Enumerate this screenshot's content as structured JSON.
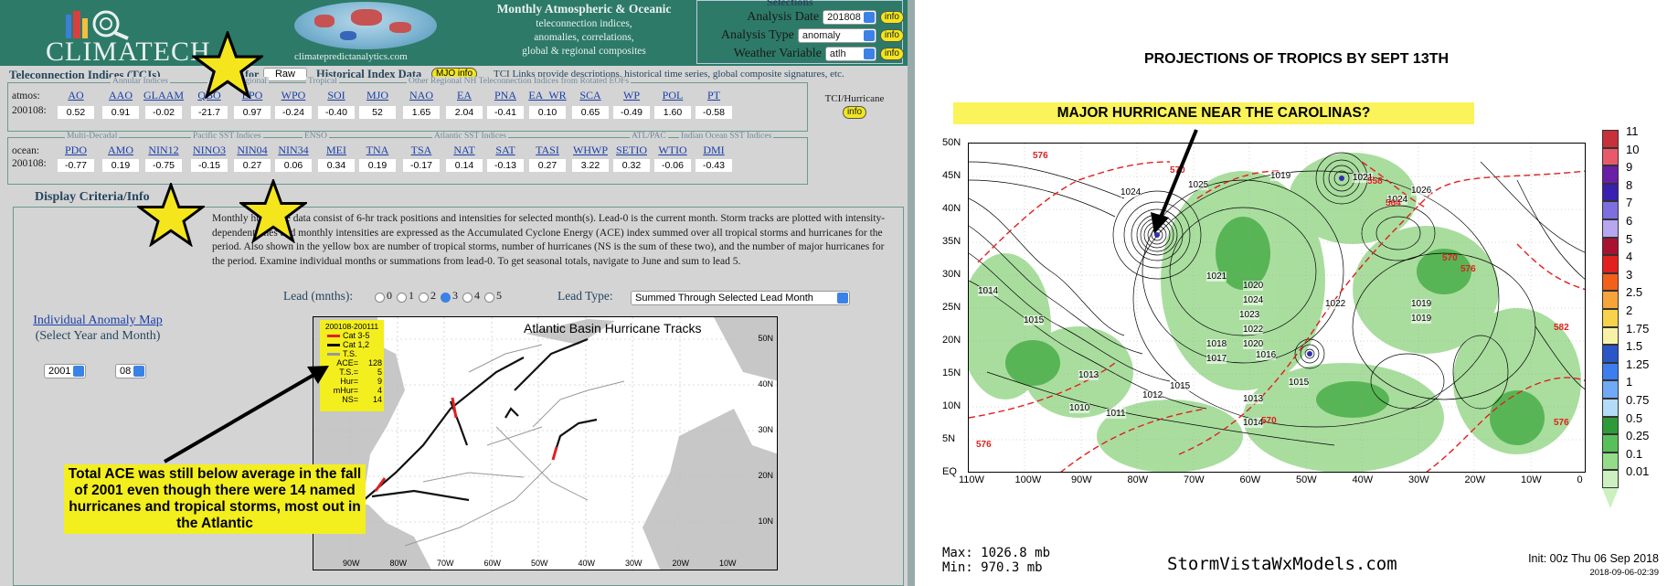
{
  "left": {
    "logo_text": "CLIMATECH",
    "site_url": "climatepredictanalytics.com",
    "header_desc": {
      "title": "Monthly Atmospheric & Oceanic",
      "line1": "teleconnection indices,",
      "line2": "anomalies, correlations,",
      "line3": "global & regional composites"
    },
    "selections": {
      "caption": "Selections",
      "analysis_date_label": "Analysis Date",
      "analysis_date_value": "201808",
      "analysis_type_label": "Analysis Type",
      "analysis_type_value": "anomaly",
      "weather_variable_label": "Weather Variable",
      "weather_variable_value": "atlh",
      "info_label": "info"
    },
    "tci": {
      "title": "Teleconnection Indices (TCIs)",
      "for_label": "for",
      "raw_value": "Raw",
      "hist_label": "Historical Index Data",
      "mjo_info": "MJO info",
      "note": "TCI Links provide descriptions, historical time series, global composite signatures, etc.",
      "hurricane_label": "TCI/Hurricane",
      "hurricane_info": "info",
      "atmos": {
        "row_label": "atmos:",
        "date_label": "200108:",
        "groups": [
          "Annular Indices",
          "Pacific Regional",
          "Tropical",
          "Other Regional NH Teleconnection Indices from Rotated EOFs"
        ],
        "names": [
          "AO",
          "AAO",
          "GLAAM",
          "QBO",
          "EPO",
          "WPO",
          "SOI",
          "MJO",
          "NAO",
          "EA",
          "PNA",
          "EA_WR",
          "SCA",
          "WP",
          "POL",
          "PT"
        ],
        "values": [
          "0.52",
          "0.91",
          "-0.02",
          "-21.7",
          "0.97",
          "-0.24",
          "-0.40",
          "52",
          "1.65",
          "2.04",
          "-0.41",
          "0.10",
          "0.65",
          "-0.49",
          "1.60",
          "-0.58"
        ]
      },
      "ocean": {
        "row_label": "ocean:",
        "date_label": "200108:",
        "groups": [
          "Multi-Decadal",
          "Pacific SST Indices",
          "ENSO",
          "Atlantic SST Indices",
          "ATL/PAC",
          "Indian Ocean SST Indices"
        ],
        "names": [
          "PDO",
          "AMO",
          "NIN12",
          "NINO3",
          "NIN04",
          "NIN34",
          "MEI",
          "TNA",
          "TSA",
          "NAT",
          "SAT",
          "TASI",
          "WHWP",
          "SETIO",
          "WTIO",
          "DMI"
        ],
        "values": [
          "-0.77",
          "0.19",
          "-0.75",
          "-0.15",
          "0.27",
          "0.06",
          "0.34",
          "0.19",
          "-0.17",
          "0.14",
          "-0.13",
          "0.27",
          "3.22",
          "0.32",
          "-0.06",
          "-0.43"
        ]
      }
    },
    "display_criteria": {
      "title": "Display Criteria/Info",
      "description": "Monthly hurricane data consist of 6-hr track positions and intensities for selected month(s). Lead-0 is the current month. Storm tracks are plotted with intensity-dependent lines and monthly intensities are expressed as the Accumulated Cyclone Energy (ACE) index summed over all tropical storms and hurricanes for the period. Also shown in the yellow box are number of tropical storms, number of hurricanes (NS is the sum of these two), and the number of major hurricanes for the period. Examine individual months or summations from lead-0. To get seasonal totals, navigate to June and sum to lead 5.",
      "individual_map_link": "Individual Anomaly Map",
      "individual_map_sub": "(Select Year and Month)",
      "year_value": "2001",
      "month_value": "08",
      "lead_label": "Lead (mnths):",
      "lead_options": [
        "0",
        "1",
        "2",
        "3",
        "4",
        "5"
      ],
      "lead_selected": "3",
      "lead_type_label": "Lead Type:",
      "lead_type_value": "Summed Through Selected Lead Month"
    },
    "hurricane_map": {
      "title": "Atlantic Basin Hurricane Tracks",
      "period": "200108-200111",
      "legend": [
        {
          "label": "Cat 3-5",
          "color": "#e02020"
        },
        {
          "label": "Cat 1,2",
          "color": "#111111"
        },
        {
          "label": "T.S.",
          "color": "#999999"
        }
      ],
      "stats": [
        {
          "key": "ACE=",
          "value": "128"
        },
        {
          "key": "T.S.=",
          "value": "5"
        },
        {
          "key": "Hur=",
          "value": "9"
        },
        {
          "key": "mHur=",
          "value": "4"
        },
        {
          "key": "NS=",
          "value": "14"
        }
      ],
      "lat_labels": [
        "50N",
        "40N",
        "30N",
        "20N",
        "10N"
      ],
      "lon_labels": [
        "90W",
        "80W",
        "70W",
        "60W",
        "50W",
        "40W",
        "30W",
        "20W",
        "10W"
      ]
    },
    "annotation": "Total ACE was still below average in the fall of 2001 even though there were 14 named hurricanes and tropical storms, most out in the Atlantic"
  },
  "right": {
    "title": "PROJECTIONS OF TROPICS BY SEPT 13TH",
    "banner": "MAJOR HURRICANE NEAR THE CAROLINAS?",
    "lat_labels": [
      "50N",
      "45N",
      "40N",
      "35N",
      "30N",
      "25N",
      "20N",
      "15N",
      "10N",
      "5N",
      "EQ"
    ],
    "lon_labels": [
      "110W",
      "100W",
      "90W",
      "80W",
      "70W",
      "60W",
      "50W",
      "40W",
      "30W",
      "20W",
      "10W",
      "0"
    ],
    "colorbar": [
      {
        "label": "11",
        "color": "#c8303a"
      },
      {
        "label": "10",
        "color": "#e85a6a"
      },
      {
        "label": "9",
        "color": "#6a1fa8"
      },
      {
        "label": "8",
        "color": "#3a1fb0"
      },
      {
        "label": "7",
        "color": "#7d6fe0"
      },
      {
        "label": "6",
        "color": "#b7a6f0"
      },
      {
        "label": "5",
        "color": "#a81230"
      },
      {
        "label": "4",
        "color": "#e32020"
      },
      {
        "label": "3",
        "color": "#f2601a"
      },
      {
        "label": "2.5",
        "color": "#f7a43a"
      },
      {
        "label": "2",
        "color": "#f8d24a"
      },
      {
        "label": "1.75",
        "color": "#f8f2a8"
      },
      {
        "label": "1.5",
        "color": "#2a56c8"
      },
      {
        "label": "1.25",
        "color": "#3c7ef0"
      },
      {
        "label": "1",
        "color": "#70aaf6"
      },
      {
        "label": "0.75",
        "color": "#b4dcf8"
      },
      {
        "label": "0.5",
        "color": "#2f9a3a"
      },
      {
        "label": "0.25",
        "color": "#58c05a"
      },
      {
        "label": "0.1",
        "color": "#94dc8a"
      },
      {
        "label": "0.01",
        "color": "#ccf0c0"
      }
    ],
    "contour_labels": [
      "1024",
      "1025",
      "1019",
      "1021",
      "1026",
      "1024",
      "1022",
      "1020",
      "1024",
      "1023",
      "1022",
      "1020",
      "1019",
      "1016",
      "1015",
      "1013",
      "1014",
      "1010",
      "1011",
      "1015",
      "1017",
      "1018",
      "1019",
      "1021",
      "1013",
      "1012",
      "1014",
      "1015"
    ],
    "height_labels": [
      "576",
      "570",
      "558",
      "564",
      "570",
      "576",
      "582",
      "576",
      "576",
      "570"
    ],
    "max": "Max: 1026.8 mb",
    "min": "Min: 970.3 mb",
    "credit": "StormVistaWxModels.com",
    "init": "Init: 00z Thu 06 Sep 2018",
    "init_sub": "2018-09-06-02:39"
  }
}
